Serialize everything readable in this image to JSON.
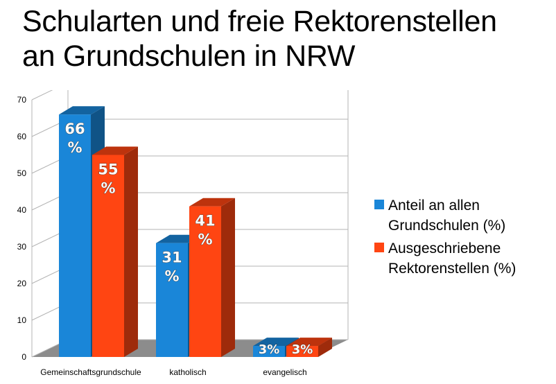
{
  "chart_data": {
    "type": "bar",
    "title": "Schularten und freie Rektorenstellen an Grundschulen in NRW",
    "title_lines": [
      "Schularten und freie Rektorenstellen",
      "an Grundschulen in NRW"
    ],
    "categories": [
      "Gemeinschaftsgrundschule",
      "katholisch",
      "evangelisch"
    ],
    "series": [
      {
        "name": "Anteil an allen Grundschulen (%)",
        "legend_lines": "Anteil an allen\nGrundschulen (%)",
        "color": "#1a86d8",
        "values": [
          66,
          31,
          3
        ],
        "labels": [
          "66 %",
          "31 %",
          "3%"
        ]
      },
      {
        "name": "Ausgeschriebene Rektorenstellen (%)",
        "legend_lines": "Ausgeschriebene\nRektorenstellen (%)",
        "color": "#ff4512",
        "values": [
          55,
          41,
          3
        ],
        "labels": [
          "55 %",
          "41 %",
          "3%"
        ]
      }
    ],
    "ylim": [
      0,
      70
    ],
    "yticks": [
      0,
      10,
      20,
      30,
      40,
      50,
      60,
      70
    ],
    "grid": true,
    "legend_position": "right",
    "style": "3d-bar"
  }
}
